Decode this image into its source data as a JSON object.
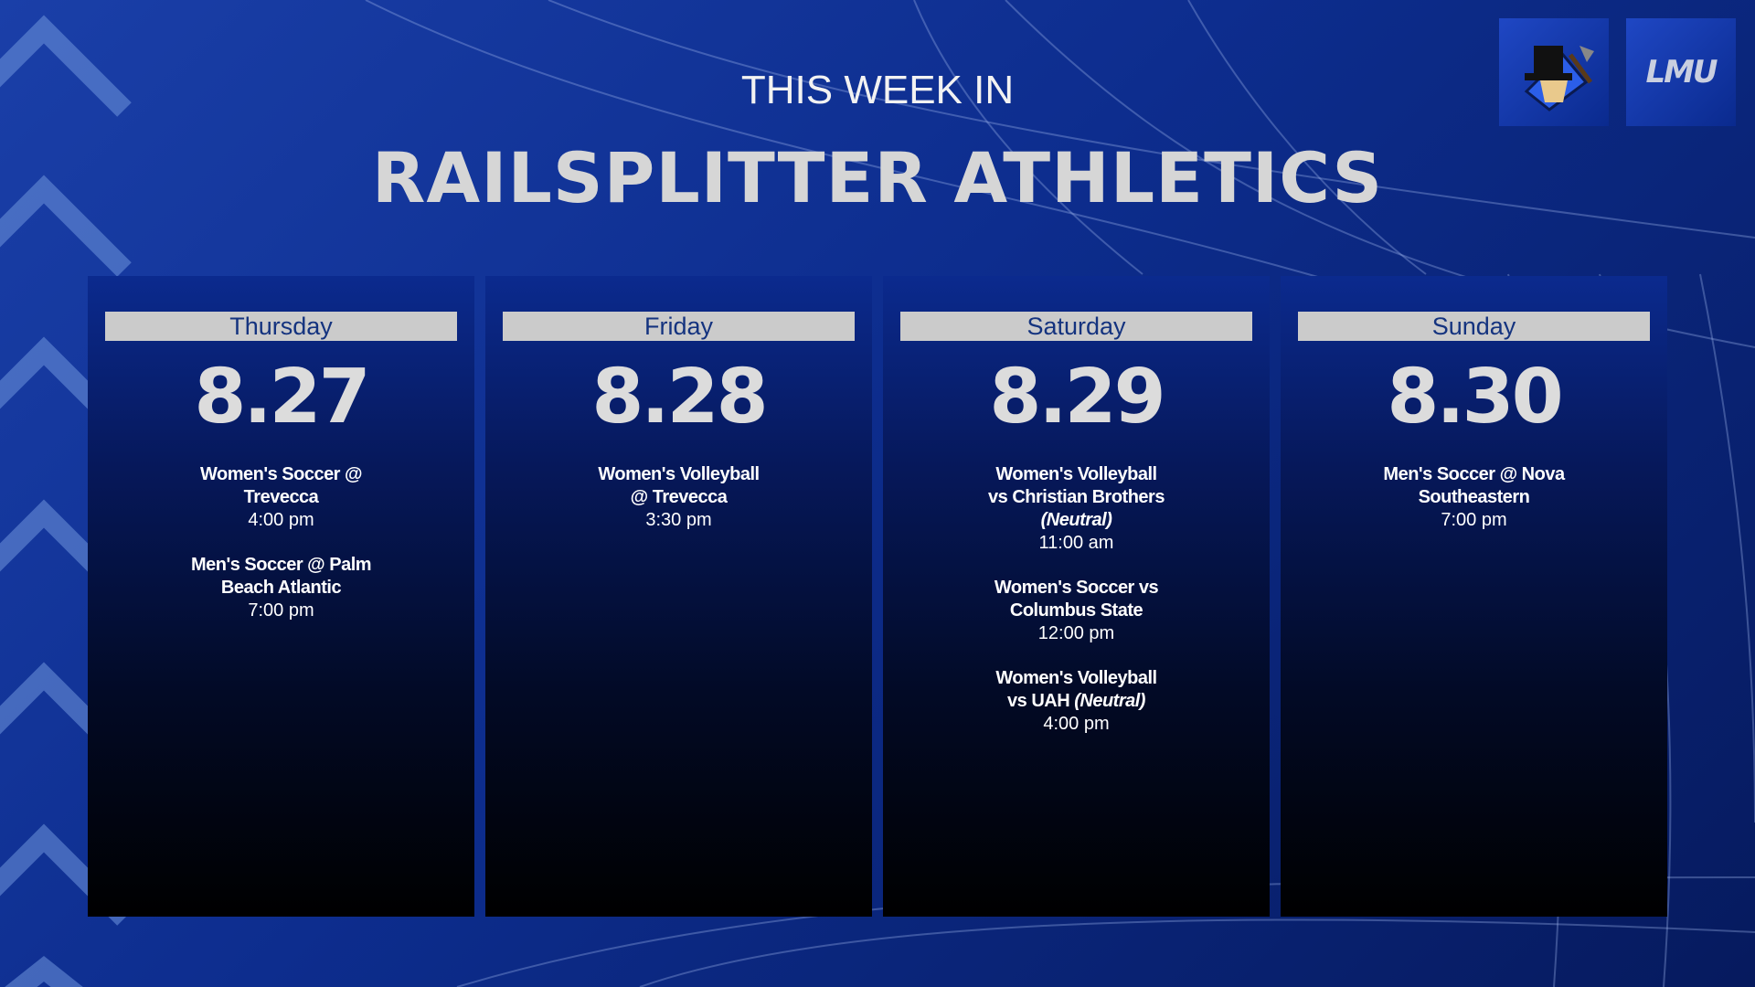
{
  "header": {
    "subtitle": "THIS WEEK IN",
    "title": "RAILSPLITTER ATHLETICS"
  },
  "logos": {
    "wordmark": "LMU"
  },
  "days": [
    {
      "day": "Thursday",
      "date": "8.27",
      "events": [
        {
          "title": "Women's Soccer @ Trevecca",
          "time": "4:00 pm"
        },
        {
          "title": "Men's Soccer @ Palm Beach Atlantic",
          "time": "7:00 pm"
        }
      ]
    },
    {
      "day": "Friday",
      "date": "8.28",
      "events": [
        {
          "title": "Women's Volleyball @ Trevecca",
          "time": "3:30 pm"
        }
      ]
    },
    {
      "day": "Saturday",
      "date": "8.29",
      "events": [
        {
          "title": "Women's Volleyball vs Christian Brothers",
          "note": "(Neutral)",
          "time": "11:00 am"
        },
        {
          "title": "Women's Soccer vs Columbus State",
          "time": "12:00 pm"
        },
        {
          "title": "Women's Volleyball vs UAH",
          "note": "(Neutral)",
          "time": "4:00 pm"
        }
      ]
    },
    {
      "day": "Sunday",
      "date": "8.30",
      "events": [
        {
          "title": "Men's Soccer @ Nova Southeastern",
          "time": "7:00 pm"
        }
      ]
    }
  ]
}
